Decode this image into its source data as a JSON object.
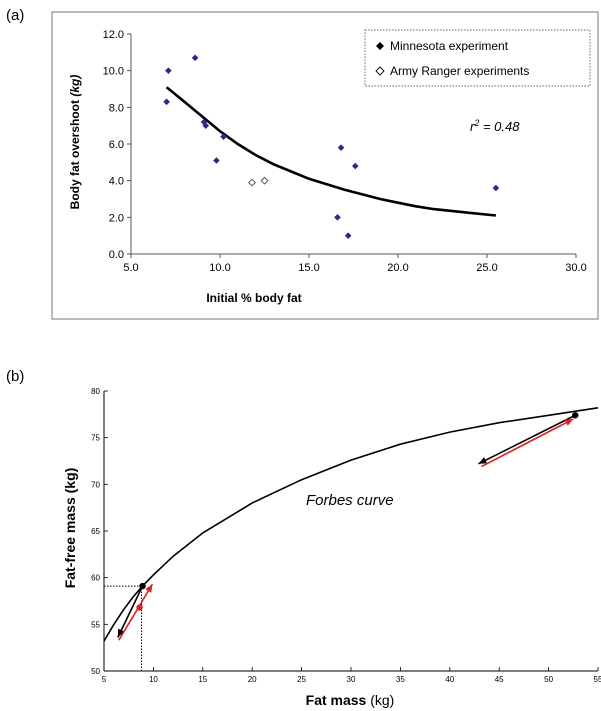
{
  "chart_data": [
    {
      "type": "scatter",
      "panel_label": "(a)",
      "xlabel": "Initial % body fat",
      "ylabel": "Body fat overshoot (kg)",
      "ylabel_main": "Body fat overshoot ",
      "ylabel_unit": "(kg)",
      "xlim": [
        5.0,
        30.0
      ],
      "ylim": [
        0.0,
        12.0
      ],
      "xticks": [
        "5.0",
        "10.0",
        "15.0",
        "20.0",
        "25.0",
        "30.0"
      ],
      "yticks": [
        "0.0",
        "2.0",
        "4.0",
        "6.0",
        "8.0",
        "10.0",
        "12.0"
      ],
      "annotation": "r² = 0.48",
      "annotation_main": "r",
      "annotation_sup": "2",
      "annotation_rest": " = 0.48",
      "legend_position": "top-right",
      "series": [
        {
          "name": "Minnesota experiment",
          "marker": "filled-diamond",
          "color": "#2a2a8c",
          "points": [
            [
              7.0,
              8.3
            ],
            [
              7.1,
              10.0
            ],
            [
              8.6,
              10.7
            ],
            [
              9.1,
              7.2
            ],
            [
              9.2,
              7.0
            ],
            [
              9.8,
              5.1
            ],
            [
              10.2,
              6.4
            ],
            [
              16.6,
              2.0
            ],
            [
              16.8,
              5.8
            ],
            [
              17.2,
              1.0
            ],
            [
              17.6,
              4.8
            ],
            [
              25.5,
              3.6
            ]
          ]
        },
        {
          "name": "Army Ranger experiments",
          "marker": "open-diamond",
          "color": "#555555",
          "points": [
            [
              11.8,
              3.9
            ],
            [
              12.5,
              4.0
            ]
          ]
        }
      ],
      "fit_curve": {
        "color": "#000000",
        "points": [
          [
            7.0,
            9.1
          ],
          [
            8.0,
            8.3
          ],
          [
            9.0,
            7.5
          ],
          [
            10.0,
            6.7
          ],
          [
            11.0,
            6.0
          ],
          [
            12.0,
            5.4
          ],
          [
            13.0,
            4.9
          ],
          [
            14.0,
            4.5
          ],
          [
            15.0,
            4.1
          ],
          [
            16.0,
            3.8
          ],
          [
            17.0,
            3.5
          ],
          [
            18.0,
            3.25
          ],
          [
            19.0,
            3.0
          ],
          [
            20.0,
            2.8
          ],
          [
            21.0,
            2.6
          ],
          [
            22.0,
            2.45
          ],
          [
            23.0,
            2.35
          ],
          [
            24.0,
            2.25
          ],
          [
            25.5,
            2.1
          ]
        ]
      }
    },
    {
      "type": "line",
      "panel_label": "(b)",
      "xlabel": "Fat mass (kg)",
      "xlabel_main": "Fat mass ",
      "xlabel_unit": "(kg)",
      "ylabel": "Fat-free mass (kg)",
      "xlim": [
        5,
        55
      ],
      "ylim": [
        50,
        80
      ],
      "xticks": [
        "5",
        "10",
        "15",
        "20",
        "25",
        "30",
        "35",
        "40",
        "45",
        "50",
        "55"
      ],
      "yticks": [
        "50",
        "55",
        "60",
        "65",
        "70",
        "75",
        "80"
      ],
      "annotation": "Forbes curve",
      "curve": {
        "color": "#000000",
        "points": [
          [
            5.0,
            53.2
          ],
          [
            6.0,
            55.0
          ],
          [
            7.0,
            56.6
          ],
          [
            8.0,
            58.0
          ],
          [
            9.0,
            59.2
          ],
          [
            10.0,
            60.3
          ],
          [
            12.0,
            62.3
          ],
          [
            15.0,
            64.8
          ],
          [
            20.0,
            68.0
          ],
          [
            25.0,
            70.5
          ],
          [
            30.0,
            72.6
          ],
          [
            35.0,
            74.3
          ],
          [
            40.0,
            75.6
          ],
          [
            45.0,
            76.6
          ],
          [
            50.0,
            77.4
          ],
          [
            55.0,
            78.2
          ]
        ]
      },
      "markers": [
        {
          "point": [
            8.9,
            59.1
          ],
          "color": "#000000"
        },
        {
          "point": [
            8.6,
            56.8
          ],
          "color": "#dd2222"
        },
        {
          "point": [
            52.7,
            77.4
          ],
          "color": "#000000"
        }
      ],
      "guides": [
        {
          "from": [
            5.0,
            59.1
          ],
          "to": [
            8.9,
            59.1
          ]
        },
        {
          "from": [
            8.8,
            50.0
          ],
          "to": [
            8.8,
            59.1
          ]
        }
      ],
      "arrows": [
        {
          "color": "#000000",
          "from": [
            8.9,
            59.1
          ],
          "to": [
            6.4,
            53.6
          ]
        },
        {
          "color": "#dd2222",
          "from": [
            6.5,
            53.3
          ],
          "to": [
            9.9,
            59.3
          ]
        },
        {
          "color": "#000000",
          "from": [
            52.7,
            77.4
          ],
          "to": [
            42.9,
            72.2
          ]
        },
        {
          "color": "#dd2222",
          "from": [
            43.2,
            71.9
          ],
          "to": [
            52.5,
            77.0
          ]
        }
      ]
    }
  ]
}
